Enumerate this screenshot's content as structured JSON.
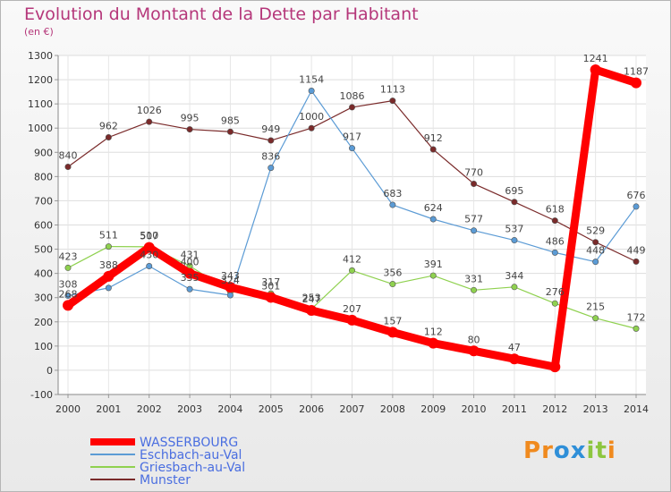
{
  "chart_data": {
    "type": "line",
    "title": "Evolution du Montant de la Dette par Habitant",
    "unit_label": "(en €)",
    "x": [
      "2000",
      "2001",
      "2002",
      "2003",
      "2004",
      "2005",
      "2006",
      "2007",
      "2008",
      "2009",
      "2010",
      "2011",
      "2012",
      "2013",
      "2014"
    ],
    "ylim": [
      -100,
      1300
    ],
    "yticks": [
      -100,
      0,
      100,
      200,
      300,
      400,
      500,
      600,
      700,
      800,
      900,
      1000,
      1100,
      1200,
      1300
    ],
    "grid": true,
    "legend_position": "bottom-left",
    "series": [
      {
        "name": "Munster",
        "color": "#7a2a2a",
        "values": [
          840,
          962,
          1026,
          995,
          985,
          949,
          1000,
          1086,
          1113,
          912,
          770,
          695,
          618,
          529,
          449
        ]
      },
      {
        "name": "Griesbach-au-Val",
        "color": "#8fd14f",
        "values": [
          423,
          511,
          510,
          431,
          324,
          317,
          253,
          412,
          356,
          391,
          331,
          344,
          276,
          215,
          172
        ]
      },
      {
        "name": "Eschbach-au-Val",
        "color": "#5b9bd5",
        "values": [
          308,
          340,
          430,
          335,
          310,
          836,
          1154,
          917,
          683,
          624,
          577,
          537,
          486,
          448,
          676
        ]
      },
      {
        "name": "WASSERBOURG",
        "color": "#ff0000",
        "values": [
          268,
          388,
          507,
          400,
          343,
          301,
          247,
          207,
          157,
          112,
          80,
          47,
          14,
          1241,
          1187
        ]
      }
    ],
    "labels": {
      "Munster": [
        "840",
        "962",
        "1026",
        "995",
        "985",
        "949",
        "1000",
        "1086",
        "1113",
        "912",
        "770",
        "695",
        "618",
        "529",
        "449"
      ],
      "Griesbach-au-Val": [
        "423",
        "511",
        "510",
        "431",
        "324",
        "317",
        "253",
        "412",
        "356",
        "391",
        "331",
        "344",
        "276",
        "215",
        "172"
      ],
      "Eschbach-au-Val": [
        "308",
        "",
        "430",
        "335",
        "",
        "836",
        "1154",
        "917",
        "683",
        "624",
        "577",
        "537",
        "486",
        "448",
        "676"
      ],
      "WASSERBOURG": [
        "268",
        "388",
        "507",
        "400",
        "343",
        "301",
        "247",
        "207",
        "157",
        "112",
        "80",
        "47",
        "",
        "1241",
        "1187"
      ]
    },
    "legend_order": [
      "WASSERBOURG",
      "Eschbach-au-Val",
      "Griesbach-au-Val",
      "Munster"
    ]
  },
  "logo": {
    "text": "Proxiti",
    "letters": [
      "P",
      "r",
      "o",
      "x",
      "i",
      "t",
      "i"
    ],
    "colors": [
      "#f08a1e",
      "#f08a1e",
      "#2f8fd8",
      "#2f8fd8",
      "#8dc63f",
      "#8dc63f",
      "#f08a1e"
    ]
  }
}
